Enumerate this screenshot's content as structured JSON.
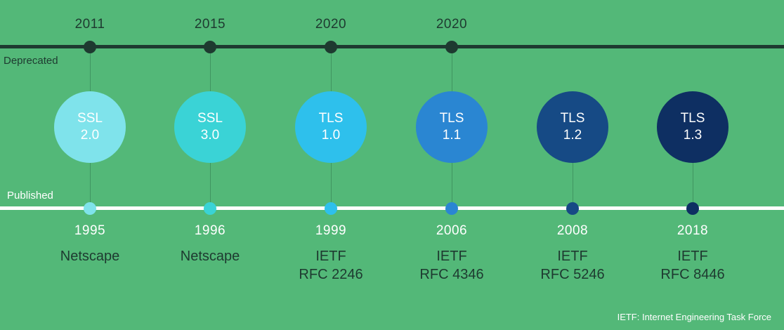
{
  "labels": {
    "deprecated": "Deprecated",
    "published": "Published"
  },
  "versions": [
    {
      "line1": "SSL",
      "line2": "2.0",
      "deprecated_year": "2011",
      "published_year": "1995",
      "publisher": [
        "Netscape"
      ],
      "color": "#7fe3eb"
    },
    {
      "line1": "SSL",
      "line2": "3.0",
      "deprecated_year": "2015",
      "published_year": "1996",
      "publisher": [
        "Netscape"
      ],
      "color": "#3ad3d6"
    },
    {
      "line1": "TLS",
      "line2": "1.0",
      "deprecated_year": "2020",
      "published_year": "1999",
      "publisher": [
        "IETF",
        "RFC 2246"
      ],
      "color": "#2ec0ec"
    },
    {
      "line1": "TLS",
      "line2": "1.1",
      "deprecated_year": "2020",
      "published_year": "2006",
      "publisher": [
        "IETF",
        "RFC 4346"
      ],
      "color": "#2a86d2"
    },
    {
      "line1": "TLS",
      "line2": "1.2",
      "deprecated_year": "",
      "published_year": "2008",
      "publisher": [
        "IETF",
        "RFC 5246"
      ],
      "color": "#164a85"
    },
    {
      "line1": "TLS",
      "line2": "1.3",
      "deprecated_year": "",
      "published_year": "2018",
      "publisher": [
        "IETF",
        "RFC 8446"
      ],
      "color": "#0e2f62"
    }
  ],
  "footnote": "IETF: Internet Engineering Task Force"
}
